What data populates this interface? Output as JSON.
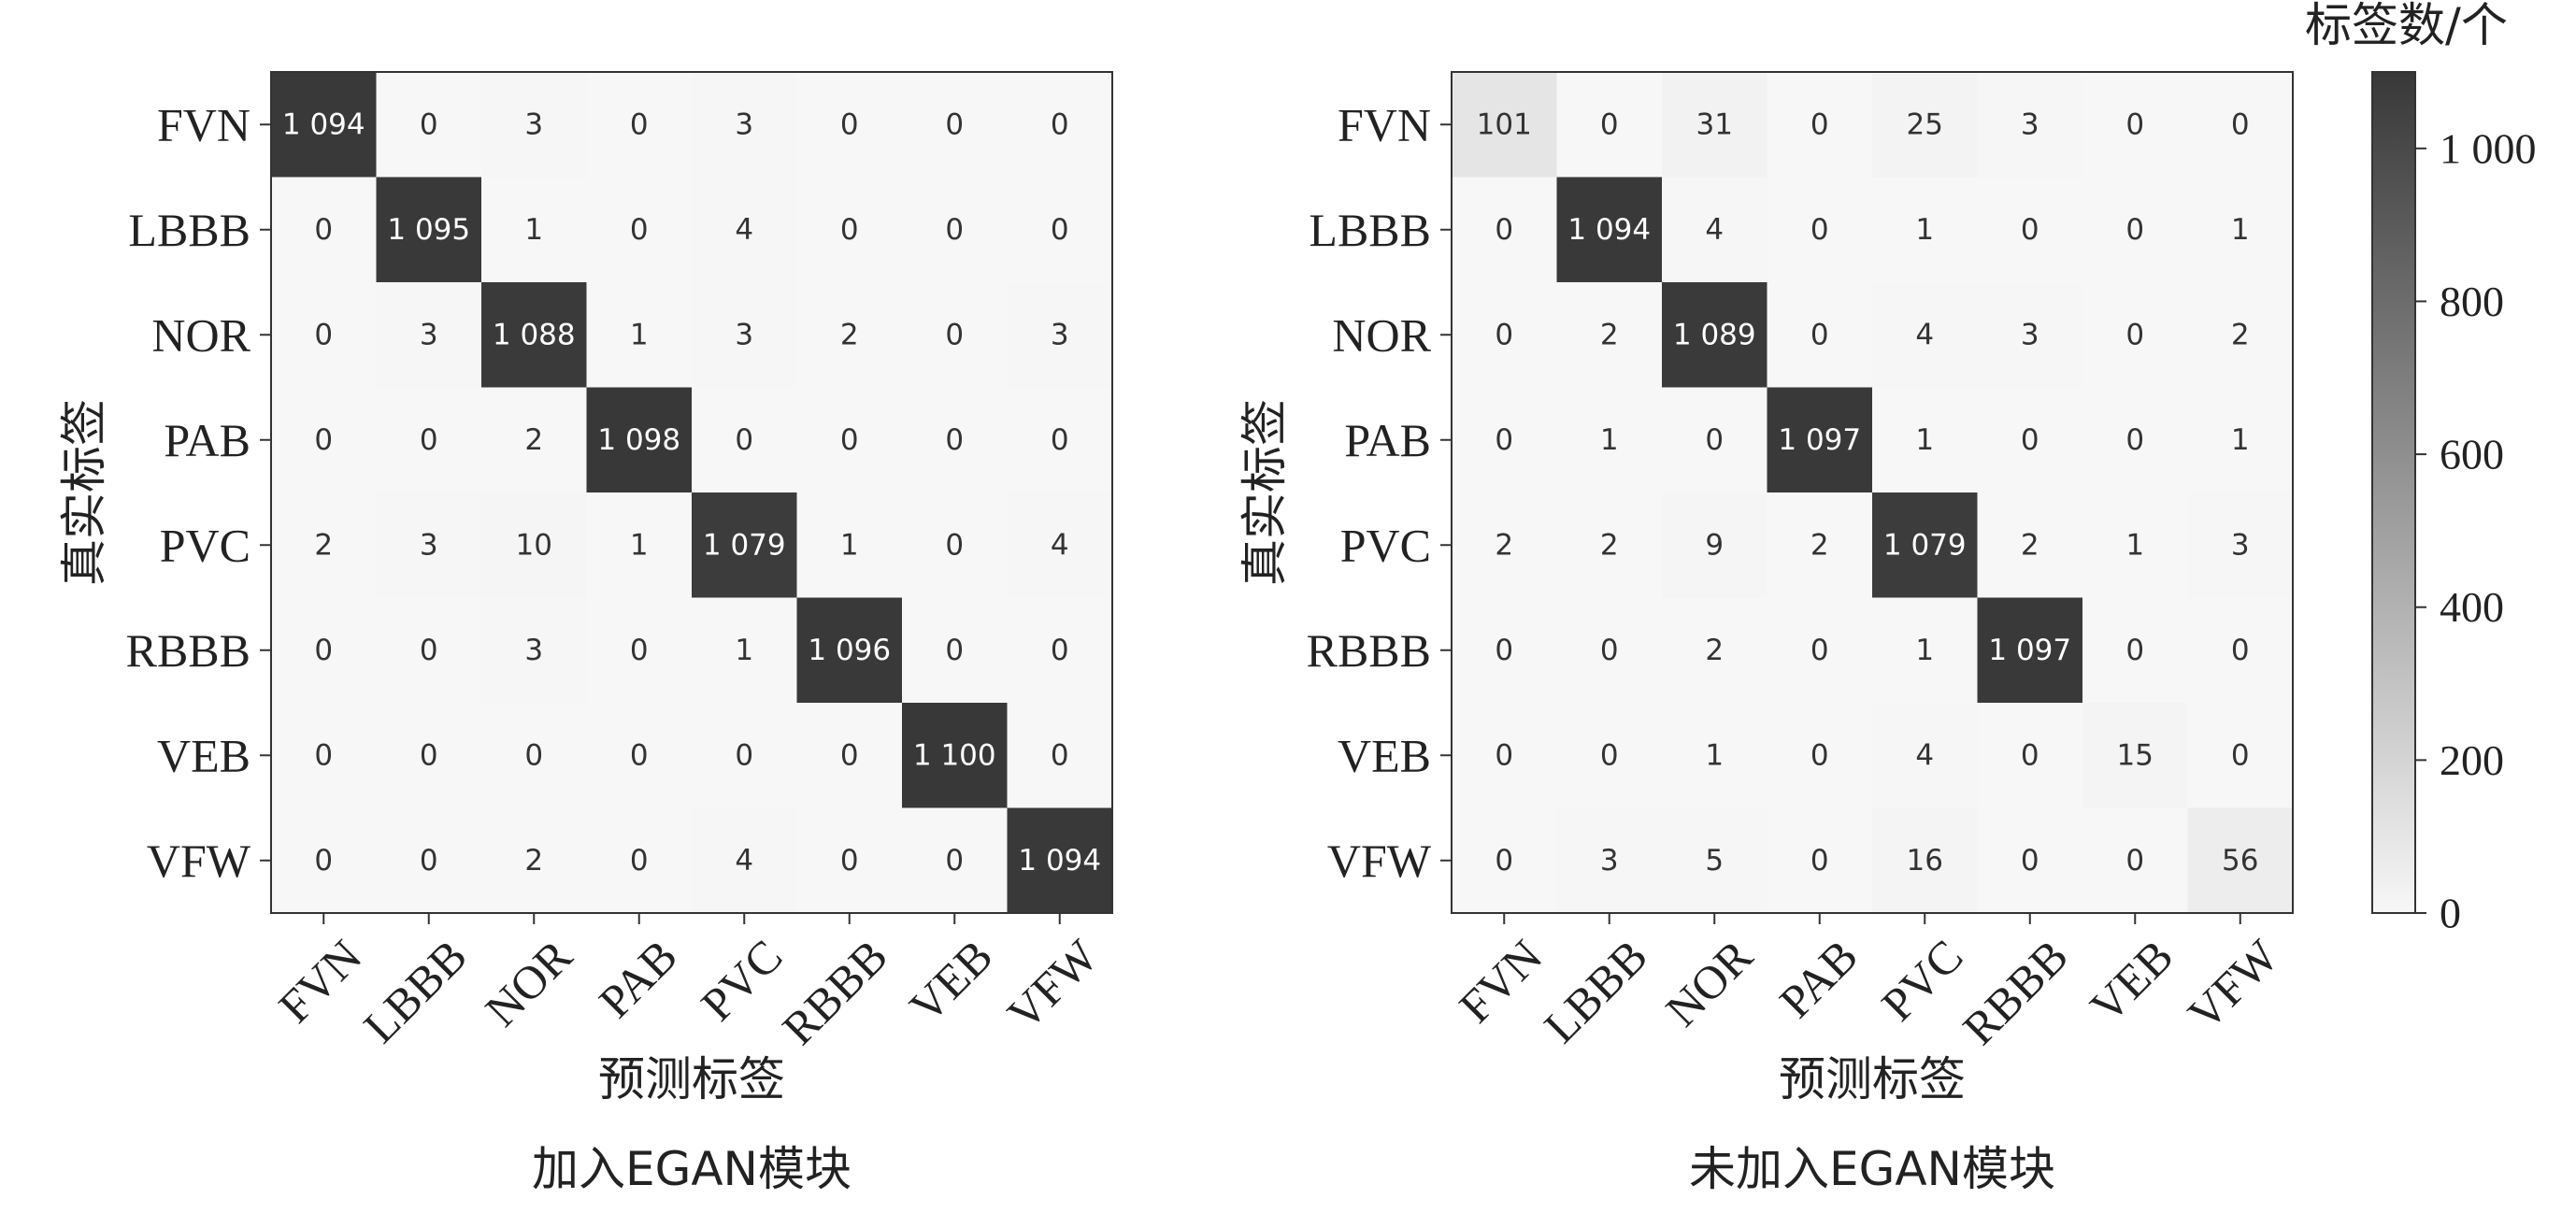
{
  "chart_data": [
    {
      "type": "heatmap",
      "caption": "加入EGAN模块",
      "xlabel": "预测标签",
      "ylabel": "真实标签",
      "x_categories": [
        "FVN",
        "LBBB",
        "NOR",
        "PAB",
        "PVC",
        "RBBB",
        "VEB",
        "VFW"
      ],
      "y_categories": [
        "FVN",
        "LBBB",
        "NOR",
        "PAB",
        "PVC",
        "RBBB",
        "VEB",
        "VFW"
      ],
      "values": [
        [
          1094,
          0,
          3,
          0,
          3,
          0,
          0,
          0
        ],
        [
          0,
          1095,
          1,
          0,
          4,
          0,
          0,
          0
        ],
        [
          0,
          3,
          1088,
          1,
          3,
          2,
          0,
          3
        ],
        [
          0,
          0,
          2,
          1098,
          0,
          0,
          0,
          0
        ],
        [
          2,
          3,
          10,
          1,
          1079,
          1,
          0,
          4
        ],
        [
          0,
          0,
          3,
          0,
          1,
          1096,
          0,
          0
        ],
        [
          0,
          0,
          0,
          0,
          0,
          0,
          1100,
          0
        ],
        [
          0,
          0,
          2,
          0,
          4,
          0,
          0,
          1094
        ]
      ],
      "value_labels": [
        [
          "1 094",
          "0",
          "3",
          "0",
          "3",
          "0",
          "0",
          "0"
        ],
        [
          "0",
          "1 095",
          "1",
          "0",
          "4",
          "0",
          "0",
          "0"
        ],
        [
          "0",
          "3",
          "1 088",
          "1",
          "3",
          "2",
          "0",
          "3"
        ],
        [
          "0",
          "0",
          "2",
          "1 098",
          "0",
          "0",
          "0",
          "0"
        ],
        [
          "2",
          "3",
          "10",
          "1",
          "1 079",
          "1",
          "0",
          "4"
        ],
        [
          "0",
          "0",
          "3",
          "0",
          "1",
          "1 096",
          "0",
          "0"
        ],
        [
          "0",
          "0",
          "0",
          "0",
          "0",
          "0",
          "1 100",
          "0"
        ],
        [
          "0",
          "0",
          "2",
          "0",
          "4",
          "0",
          "0",
          "1 094"
        ]
      ]
    },
    {
      "type": "heatmap",
      "caption": "未加入EGAN模块",
      "xlabel": "预测标签",
      "ylabel": "真实标签",
      "x_categories": [
        "FVN",
        "LBBB",
        "NOR",
        "PAB",
        "PVC",
        "RBBB",
        "VEB",
        "VFW"
      ],
      "y_categories": [
        "FVN",
        "LBBB",
        "NOR",
        "PAB",
        "PVC",
        "RBBB",
        "VEB",
        "VFW"
      ],
      "values": [
        [
          101,
          0,
          31,
          0,
          25,
          3,
          0,
          0
        ],
        [
          0,
          1094,
          4,
          0,
          1,
          0,
          0,
          1
        ],
        [
          0,
          2,
          1089,
          0,
          4,
          3,
          0,
          2
        ],
        [
          0,
          1,
          0,
          1097,
          1,
          0,
          0,
          1
        ],
        [
          2,
          2,
          9,
          2,
          1079,
          2,
          1,
          3
        ],
        [
          0,
          0,
          2,
          0,
          1,
          1097,
          0,
          0
        ],
        [
          0,
          0,
          1,
          0,
          4,
          0,
          15,
          0
        ],
        [
          0,
          3,
          5,
          0,
          16,
          0,
          0,
          56
        ]
      ],
      "value_labels": [
        [
          "101",
          "0",
          "31",
          "0",
          "25",
          "3",
          "0",
          "0"
        ],
        [
          "0",
          "1 094",
          "4",
          "0",
          "1",
          "0",
          "0",
          "1"
        ],
        [
          "0",
          "2",
          "1 089",
          "0",
          "4",
          "3",
          "0",
          "2"
        ],
        [
          "0",
          "1",
          "0",
          "1 097",
          "1",
          "0",
          "0",
          "1"
        ],
        [
          "2",
          "2",
          "9",
          "2",
          "1 079",
          "2",
          "1",
          "3"
        ],
        [
          "0",
          "0",
          "2",
          "0",
          "1",
          "1 097",
          "0",
          "0"
        ],
        [
          "0",
          "0",
          "1",
          "0",
          "4",
          "0",
          "15",
          "0"
        ],
        [
          "0",
          "3",
          "5",
          "0",
          "16",
          "0",
          "0",
          "56"
        ]
      ]
    }
  ],
  "colorbar": {
    "title": "标签数/个",
    "range": [
      0,
      1100
    ],
    "ticks": [
      0,
      200,
      400,
      600,
      800,
      1000
    ],
    "tick_labels": [
      "0",
      "200",
      "400",
      "600",
      "800",
      "1 000"
    ],
    "color_low": "#f7f7f7",
    "color_high": "#383838"
  }
}
